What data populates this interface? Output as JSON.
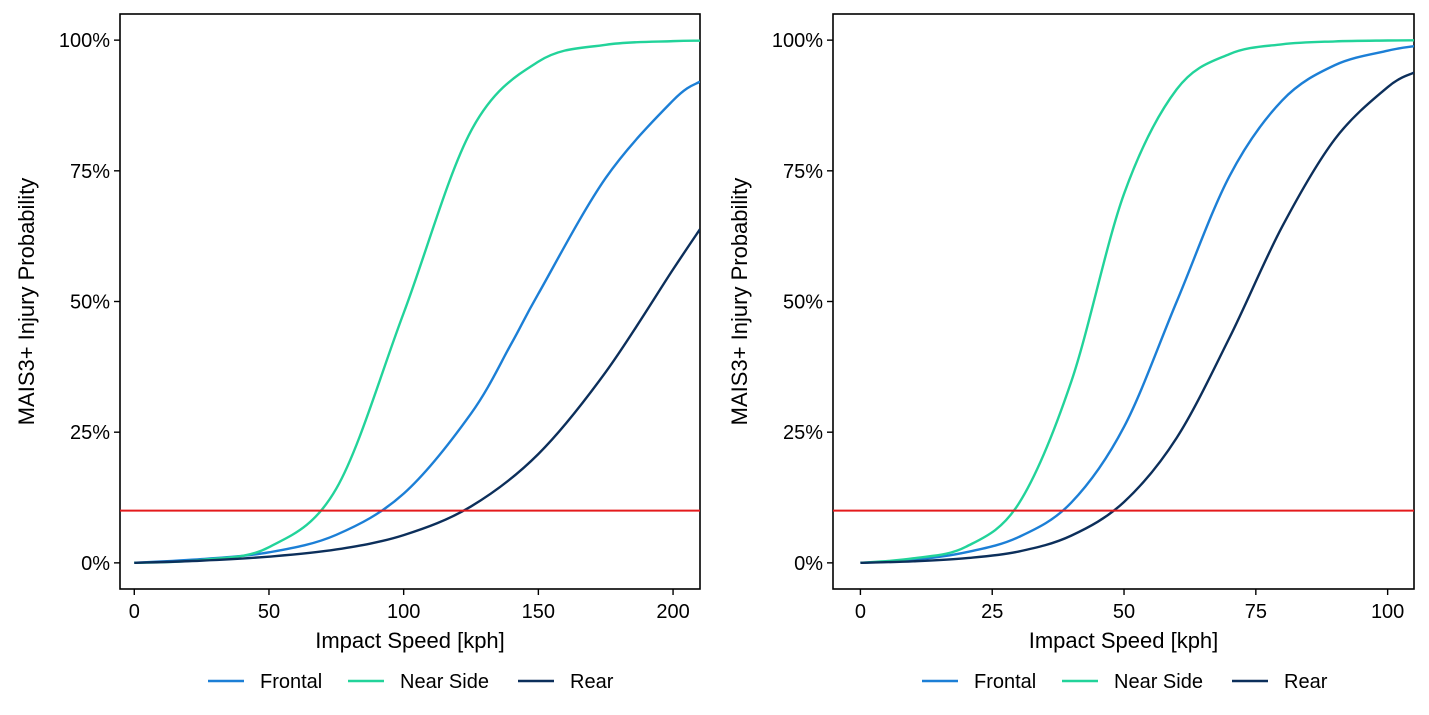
{
  "chart_data": [
    {
      "type": "line",
      "title": "",
      "xlabel": "Impact Speed [kph]",
      "ylabel": "MAIS3+ Injury Probability",
      "xlim": [
        -5.3,
        210
      ],
      "ylim": [
        -0.05,
        1.05
      ],
      "xticks": [
        0,
        50,
        100,
        150,
        200
      ],
      "xtick_labels": [
        "0",
        "50",
        "100",
        "150",
        "200"
      ],
      "yticks": [
        0,
        0.25,
        0.5,
        0.75,
        1.0
      ],
      "ytick_labels": [
        "0%",
        "25%",
        "50%",
        "75%",
        "100%"
      ],
      "grid": false,
      "legend_position": "bottom",
      "threshold": {
        "value": 0.1,
        "color": "#e41a1c"
      },
      "series": [
        {
          "name": "Frontal",
          "color": "#1c7fd6",
          "x": [
            0,
            25,
            50,
            75,
            100,
            125,
            140,
            150,
            175,
            200,
            210
          ],
          "y": [
            0.0,
            0.0072,
            0.0201,
            0.0537,
            0.1324,
            0.2856,
            0.4197,
            0.5149,
            0.7364,
            0.8846,
            0.9208
          ]
        },
        {
          "name": "Near Side",
          "color": "#22d39a",
          "x": [
            0,
            25,
            50,
            75,
            100,
            125,
            150,
            175,
            200,
            210
          ],
          "y": [
            0.0,
            0.0057,
            0.0301,
            0.1421,
            0.478,
            0.8263,
            0.9589,
            0.9911,
            0.9981,
            0.999
          ]
        },
        {
          "name": "Rear",
          "color": "#0c2f5b",
          "x": [
            0,
            25,
            50,
            75,
            100,
            125,
            150,
            175,
            200,
            210
          ],
          "y": [
            0.0,
            0.0043,
            0.0119,
            0.0256,
            0.0531,
            0.108,
            0.2083,
            0.365,
            0.5614,
            0.6383
          ]
        }
      ]
    },
    {
      "type": "line",
      "title": "",
      "xlabel": "Impact Speed [kph]",
      "ylabel": "MAIS3+ Injury Probability",
      "xlim": [
        -5.2,
        105
      ],
      "ylim": [
        -0.05,
        1.05
      ],
      "xticks": [
        0,
        25,
        50,
        75,
        100
      ],
      "xtick_labels": [
        "0",
        "25",
        "50",
        "75",
        "100"
      ],
      "yticks": [
        0,
        0.25,
        0.5,
        0.75,
        1.0
      ],
      "ytick_labels": [
        "0%",
        "25%",
        "50%",
        "75%",
        "100%"
      ],
      "grid": false,
      "legend_position": "bottom",
      "threshold": {
        "value": 0.1,
        "color": "#e41a1c"
      },
      "series": [
        {
          "name": "Frontal",
          "color": "#1c7fd6",
          "x": [
            0,
            10,
            20,
            30,
            40,
            50,
            60,
            70,
            80,
            90,
            100,
            105
          ],
          "y": [
            0.0,
            0.0057,
            0.0202,
            0.0493,
            0.1153,
            0.2602,
            0.5,
            0.7398,
            0.8847,
            0.9522,
            0.9798,
            0.9885
          ]
        },
        {
          "name": "Near Side",
          "color": "#22d39a",
          "x": [
            0,
            10,
            20,
            30,
            40,
            50,
            60,
            70,
            80,
            90,
            100,
            105
          ],
          "y": [
            0.0,
            0.0086,
            0.0307,
            0.1129,
            0.347,
            0.706,
            0.906,
            0.9733,
            0.992,
            0.9976,
            0.9993,
            0.9997
          ]
        },
        {
          "name": "Rear",
          "color": "#0c2f5b",
          "x": [
            0,
            10,
            20,
            30,
            40,
            50,
            60,
            70,
            80,
            90,
            100,
            105
          ],
          "y": [
            0.0,
            0.003,
            0.009,
            0.0217,
            0.0521,
            0.1165,
            0.2394,
            0.4307,
            0.6433,
            0.8108,
            0.91,
            0.938
          ]
        }
      ]
    }
  ]
}
